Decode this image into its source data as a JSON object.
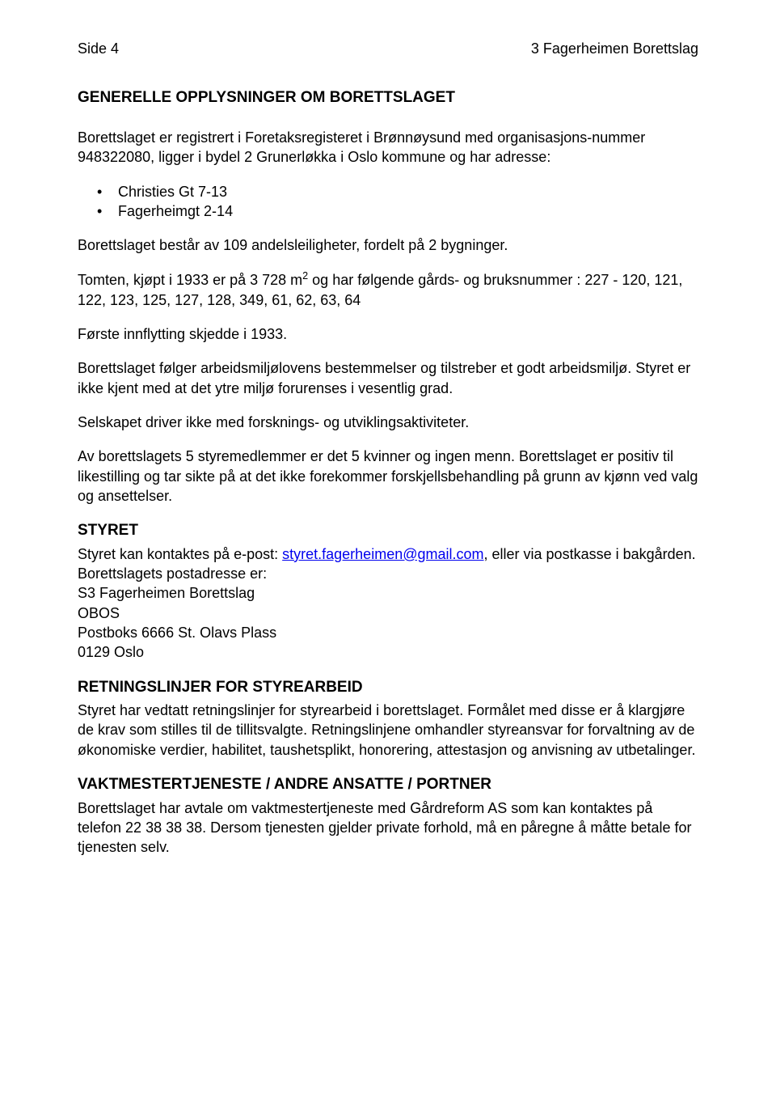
{
  "header": {
    "left": "Side 4",
    "right": "3 Fagerheimen Borettslag"
  },
  "title": "GENERELLE OPPLYSNINGER OM BORETTSLAGET",
  "intro": "Borettslaget er registrert i Foretaksregisteret i Brønnøysund med organisasjons-nummer 948322080, ligger i bydel 2 Grunerløkka i Oslo kommune og har adresse:",
  "addresses": [
    "Christies Gt 7-13",
    "Fagerheimgt 2-14"
  ],
  "p_units": "Borettslaget består av 109 andelsleiligheter, fordelt på 2 bygninger.",
  "p_tomten_pre": "Tomten, kjøpt i 1933 er på 3 728 m",
  "p_tomten_post": " og har følgende gårds- og bruksnummer : 227 - 120, 121, 122, 123, 125, 127, 128, 349, 61, 62, 63, 64",
  "p_first_move": "Første innflytting skjedde i 1933.",
  "p_arbeidsmiljo": "Borettslaget følger arbeidsmiljølovens bestemmelser og tilstreber et godt arbeidsmiljø. Styret er ikke kjent med at det ytre miljø forurenses i vesentlig grad.",
  "p_forskning": "Selskapet driver ikke med forsknings- og utviklingsaktiviteter.",
  "p_styremedlemmer": "Av borettslagets 5 styremedlemmer er det 5 kvinner og ingen menn. Borettslaget er positiv til likestilling og tar sikte på at det ikke forekommer forskjellsbehandling på grunn av kjønn ved valg og ansettelser.",
  "styret_title": "STYRET",
  "styret_pre": "Styret kan kontaktes på e-post: ",
  "styret_email": "styret.fagerheimen@gmail.com",
  "styret_post": ", eller via postkasse i bakgården. Borettslagets postadresse er:",
  "post_address": [
    "S3 Fagerheimen Borettslag",
    "OBOS",
    "Postboks 6666 St. Olavs Plass",
    "0129 Oslo"
  ],
  "retningslinjer_title": "RETNINGSLINJER FOR STYREARBEID",
  "retningslinjer_body": "Styret har vedtatt retningslinjer for styrearbeid i borettslaget. Formålet med disse er å klargjøre de krav som stilles til de tillitsvalgte. Retningslinjene omhandler styreansvar for forvaltning av de økonomiske verdier, habilitet, taushetsplikt, honorering, attestasjon og anvisning av utbetalinger.",
  "vaktmester_title": "VAKTMESTERTJENESTE / ANDRE ANSATTE /  PORTNER",
  "vaktmester_body": "Borettslaget har avtale om vaktmestertjeneste med Gårdreform AS  som kan kontaktes på telefon 22 38 38 38. Dersom tjenesten gjelder private forhold, må en påregne å måtte betale for tjenesten selv."
}
